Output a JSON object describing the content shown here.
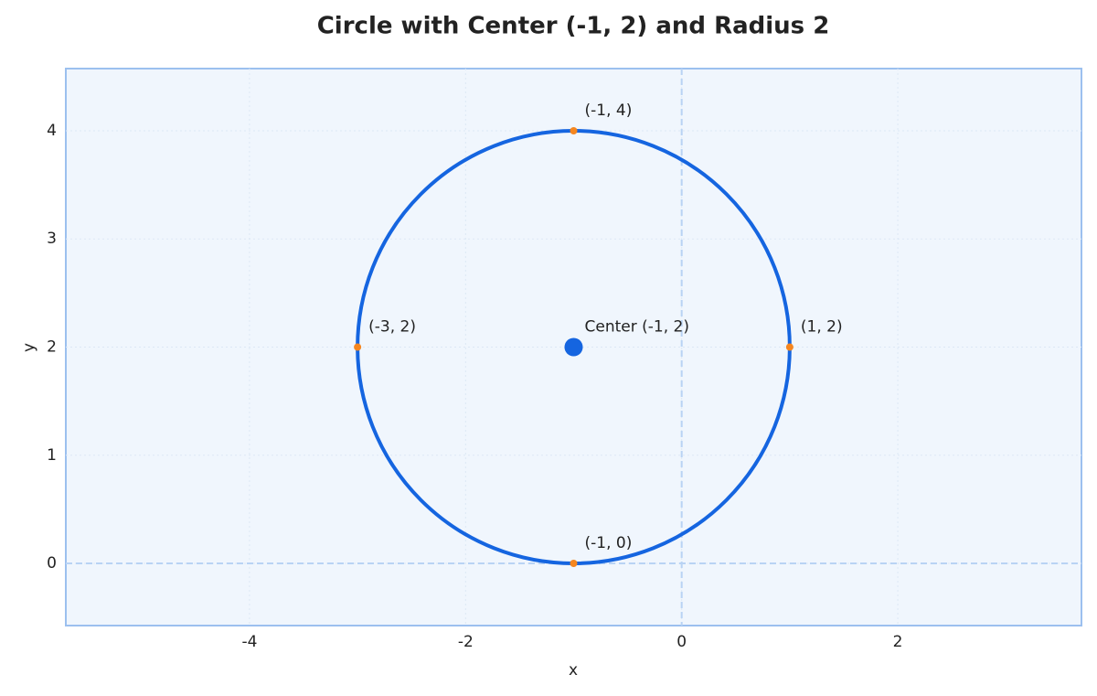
{
  "chart_data": {
    "type": "circle",
    "title": "Circle with Center (-1, 2) and Radius 2",
    "xlabel": "x",
    "ylabel": "y",
    "xlim": [
      -5.7,
      3.7
    ],
    "ylim": [
      -0.575,
      4.575
    ],
    "xticks": [
      -4,
      -2,
      0,
      2
    ],
    "yticks": [
      0,
      1,
      2,
      3,
      4
    ],
    "grid": true,
    "axis_lines": true,
    "radius": 2,
    "circle_color": "#1565e0",
    "center": {
      "x": -1,
      "y": 2,
      "label": "Center (-1, 2)",
      "color": "#1565e0"
    },
    "points": {
      "x": [
        -1,
        1,
        -1,
        -3
      ],
      "y": [
        4,
        2,
        0,
        2
      ],
      "labels": [
        "(-1, 4)",
        "(1, 2)",
        "(-1, 0)",
        "(-3, 2)"
      ],
      "color": "#f5861f"
    }
  }
}
